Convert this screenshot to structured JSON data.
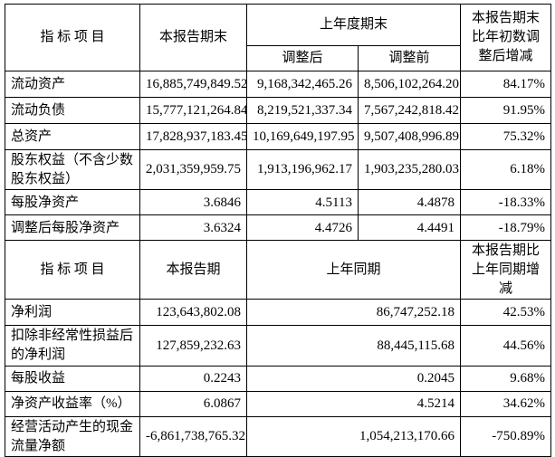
{
  "page": {
    "background": "#ffffff",
    "border_color": "#000000",
    "text_color": "#000000"
  },
  "section1": {
    "header": {
      "indicator": "指  标  项  目",
      "col_current": "本报告期末",
      "col_prior_group": "上年度期末",
      "col_adjusted": "调整后",
      "col_before": "调整前",
      "col_change": "本报告期末比年初数调整后增减"
    },
    "rows": [
      {
        "label": "流动资产",
        "current": "16,885,749,849.52",
        "adjusted": "9,168,342,465.26",
        "before": "8,506,102,264.20",
        "change": "84.17%"
      },
      {
        "label": "流动负债",
        "current": "15,777,121,264.84",
        "adjusted": "8,219,521,337.34",
        "before": "7,567,242,818.42",
        "change": "91.95%"
      },
      {
        "label": "总资产",
        "current": "17,828,937,183.45",
        "adjusted": "10,169,649,197.95",
        "before": "9,507,408,996.89",
        "change": "75.32%"
      },
      {
        "label": "股东权益（不含少数股东权益）",
        "current": "2,031,359,959.75",
        "adjusted": "1,913,196,962.17",
        "before": "1,903,235,280.03",
        "change": "6.18%"
      },
      {
        "label": "每股净资产",
        "current": "3.6846",
        "adjusted": "4.5113",
        "before": "4.4878",
        "change": "-18.33%"
      },
      {
        "label": "调整后每股净资产",
        "current": "3.6324",
        "adjusted": "4.4726",
        "before": "4.4491",
        "change": "-18.79%"
      }
    ]
  },
  "section2": {
    "header": {
      "indicator": "指  标  项  目",
      "col_current": "本报告期",
      "col_prior": "上年同期",
      "col_change": "本报告期比上年同期增减"
    },
    "rows": [
      {
        "label": "净利润",
        "current": "123,643,802.08",
        "prior": "86,747,252.18",
        "change": "42.53%"
      },
      {
        "label": "扣除非经常性损益后的净利润",
        "current": "127,859,232.63",
        "prior": "88,445,115.68",
        "change": "44.56%"
      },
      {
        "label": "每股收益",
        "current": "0.2243",
        "prior": "0.2045",
        "change": "9.68%"
      },
      {
        "label": "净资产收益率（%）",
        "current": "6.0867",
        "prior": "4.5214",
        "change": "34.62%"
      },
      {
        "label": "经营活动产生的现金流量净额",
        "current": "-6,861,738,765.32",
        "prior": "1,054,213,170.66",
        "change": "-750.89%"
      }
    ]
  }
}
